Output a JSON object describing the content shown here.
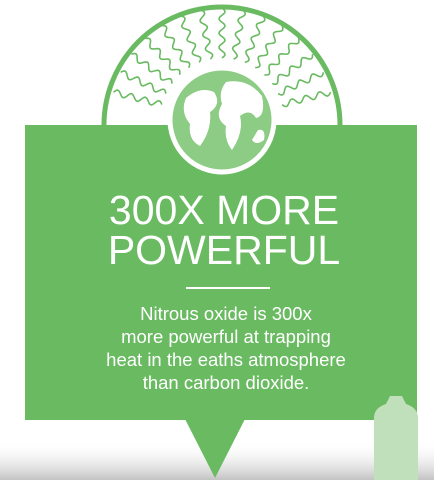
{
  "headline": {
    "lines": [
      "300X MORE",
      "POWERFUL"
    ]
  },
  "body": {
    "lines": [
      "Nitrous oxide is 300x",
      "more powerful at trapping",
      "heat in the eaths atmosphere",
      "than carbon dioxide."
    ]
  }
}
